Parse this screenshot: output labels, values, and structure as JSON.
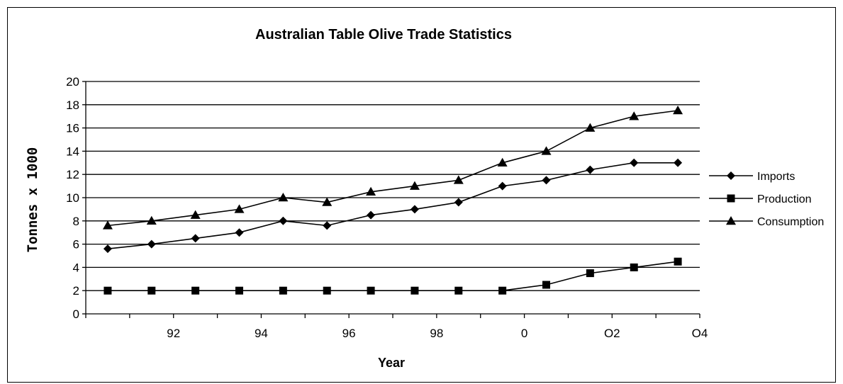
{
  "chart_data": {
    "type": "line",
    "title": "Australian Table Olive Trade Statistics",
    "xlabel": "Year",
    "ylabel": "Tonnes x 1000",
    "ylim": [
      0,
      20
    ],
    "y_ticks": [
      "0",
      "2",
      "4",
      "6",
      "8",
      "10",
      "12",
      "14",
      "16",
      "18",
      "20"
    ],
    "x_tick_labels": [
      "92",
      "94",
      "96",
      "98",
      "0",
      "O2",
      "O4"
    ],
    "grid": "horizontal",
    "legend_position": "right",
    "series": [
      {
        "name": "Imports",
        "marker": "diamond",
        "values": [
          5.6,
          6.0,
          6.5,
          7.0,
          8.0,
          7.6,
          8.5,
          9.0,
          9.6,
          11.0,
          11.5,
          12.4,
          13.0,
          13.0
        ]
      },
      {
        "name": "Production",
        "marker": "square",
        "values": [
          2.0,
          2.0,
          2.0,
          2.0,
          2.0,
          2.0,
          2.0,
          2.0,
          2.0,
          2.0,
          2.5,
          3.5,
          4.0,
          4.5
        ]
      },
      {
        "name": "Consumption",
        "marker": "triangle",
        "values": [
          7.6,
          8.0,
          8.5,
          9.0,
          10.0,
          9.6,
          10.5,
          11.0,
          11.5,
          13.0,
          14.0,
          16.0,
          17.0,
          17.5
        ]
      }
    ],
    "colors": {
      "line": "#000000",
      "grid": "#000000",
      "background": "#ffffff"
    }
  }
}
